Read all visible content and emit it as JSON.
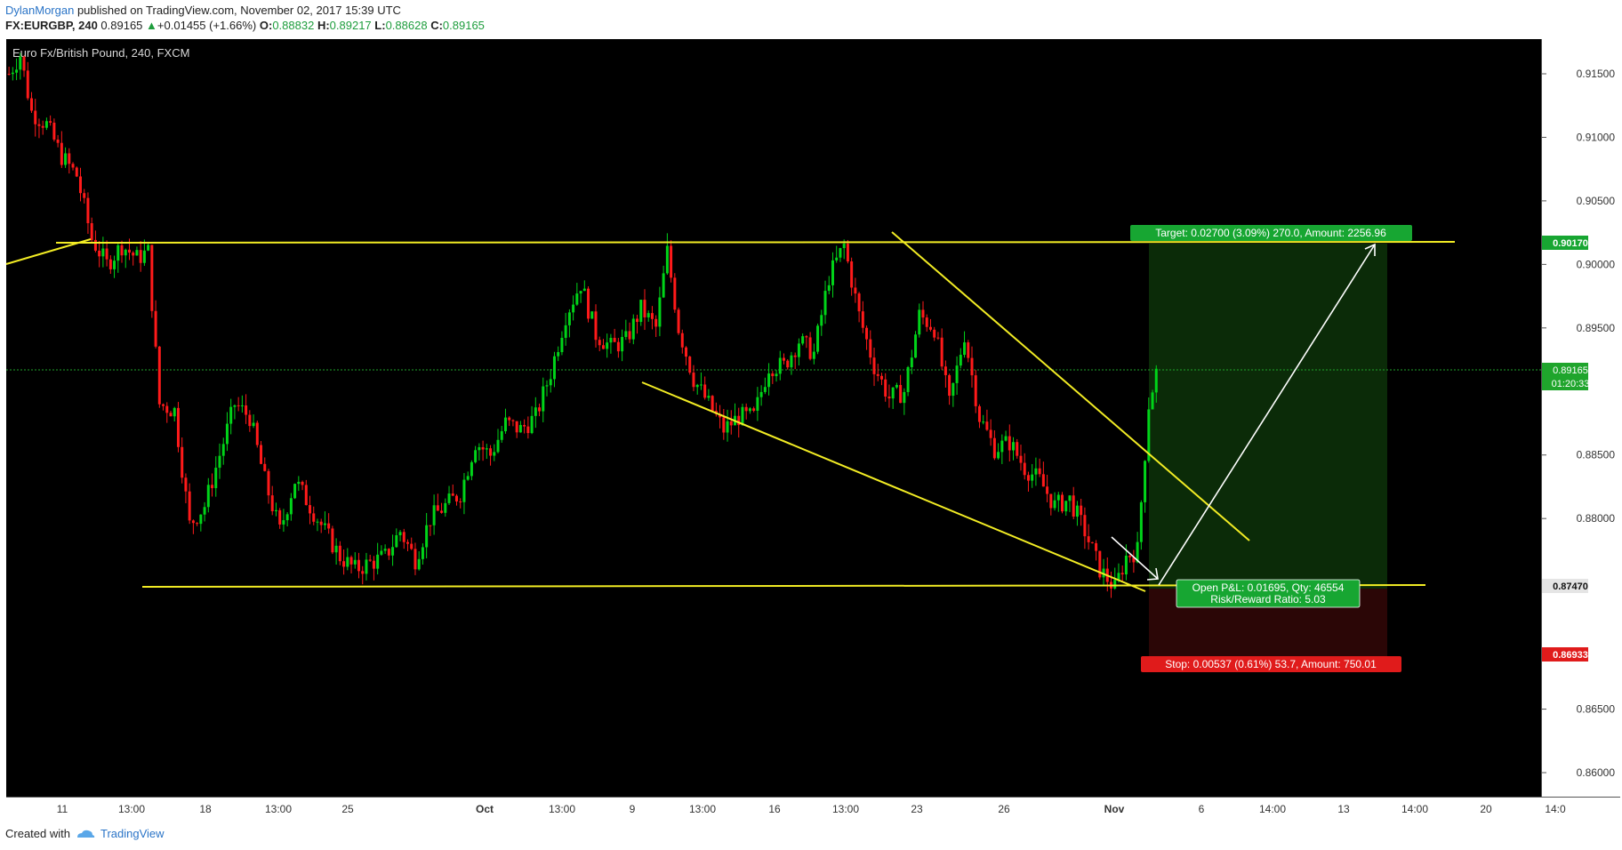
{
  "header": {
    "author": "DylanMorgan",
    "published_text": "published on TradingView.com, November 02, 2017 15:39 UTC",
    "symbol": "FX:EURGBP, 240",
    "last": "0.89165",
    "change": "+0.01455 (+1.66%)",
    "o_label": "O:",
    "o_value": "0.88832",
    "h_label": "H:",
    "h_value": "0.89217",
    "l_label": "L:",
    "l_value": "0.88628",
    "c_label": "C:",
    "c_value": "0.89165"
  },
  "footer": {
    "created_with": "Created with",
    "brand": "TradingView"
  },
  "colors": {
    "up": "#00d419",
    "down": "#ff1a1a",
    "trendline": "#f2ec24",
    "target_zone": "#0b2b08",
    "stop_zone": "#2b0606",
    "price_line": "#1fa52c",
    "stop_label": "#e01b1b",
    "target_label": "#17a632"
  },
  "chart_data": {
    "type": "candlestick",
    "title": "Euro Fx/British Pound, 240, FXCM",
    "ylim": [
      0.8575,
      0.918
    ],
    "y_ticks": [
      "0.91500",
      "0.91000",
      "0.90500",
      "0.90000",
      "0.89500",
      "0.88500",
      "0.88000",
      "0.86500",
      "0.86000"
    ],
    "x_ticks": [
      "11",
      "13:00",
      "18",
      "13:00",
      "25",
      "Oct",
      "13:00",
      "9",
      "13:00",
      "16",
      "13:00",
      "23",
      "26",
      "Nov",
      "6",
      "14:00",
      "13",
      "14:00",
      "20",
      "14:0"
    ],
    "price_labels": {
      "target": "0.90170",
      "current": "0.89165",
      "countdown": "01:20:33",
      "entry": "0.87470",
      "stop": "0.86933"
    },
    "position": {
      "target_text": "Target: 0.02700 (3.09%) 270.0, Amount: 2256.96",
      "stop_text": "Stop: 0.00537 (0.61%) 53.7, Amount: 750.01",
      "pnl_text": "Open P&L: 0.01695, Qty: 46554",
      "rr_text": "Risk/Reward Ratio: 5.03"
    },
    "anchors": [
      [
        0,
        0.915
      ],
      [
        3,
        0.9165
      ],
      [
        6,
        0.912
      ],
      [
        10,
        0.911
      ],
      [
        14,
        0.9085
      ],
      [
        18,
        0.907
      ],
      [
        22,
        0.902
      ],
      [
        26,
        0.9
      ],
      [
        30,
        0.9015
      ],
      [
        34,
        0.9005
      ],
      [
        37,
        0.901
      ],
      [
        40,
        0.889
      ],
      [
        44,
        0.8885
      ],
      [
        48,
        0.8795
      ],
      [
        52,
        0.881
      ],
      [
        56,
        0.885
      ],
      [
        60,
        0.889
      ],
      [
        64,
        0.888
      ],
      [
        68,
        0.883
      ],
      [
        72,
        0.879
      ],
      [
        76,
        0.883
      ],
      [
        80,
        0.881
      ],
      [
        84,
        0.879
      ],
      [
        88,
        0.877
      ],
      [
        92,
        0.876
      ],
      [
        96,
        0.8765
      ],
      [
        100,
        0.877
      ],
      [
        104,
        0.879
      ],
      [
        108,
        0.8768
      ],
      [
        112,
        0.88
      ],
      [
        116,
        0.881
      ],
      [
        120,
        0.882
      ],
      [
        124,
        0.886
      ],
      [
        128,
        0.885
      ],
      [
        132,
        0.8875
      ],
      [
        136,
        0.887
      ],
      [
        140,
        0.888
      ],
      [
        144,
        0.8915
      ],
      [
        148,
        0.896
      ],
      [
        152,
        0.8985
      ],
      [
        156,
        0.8945
      ],
      [
        160,
        0.8935
      ],
      [
        164,
        0.894
      ],
      [
        168,
        0.8965
      ],
      [
        172,
        0.895
      ],
      [
        175,
        0.901
      ],
      [
        178,
        0.895
      ],
      [
        182,
        0.891
      ],
      [
        186,
        0.889
      ],
      [
        190,
        0.887
      ],
      [
        194,
        0.888
      ],
      [
        198,
        0.888
      ],
      [
        202,
        0.892
      ],
      [
        206,
        0.892
      ],
      [
        210,
        0.894
      ],
      [
        214,
        0.893
      ],
      [
        218,
        0.899
      ],
      [
        222,
        0.9015
      ],
      [
        226,
        0.896
      ],
      [
        230,
        0.892
      ],
      [
        234,
        0.8895
      ],
      [
        238,
        0.89
      ],
      [
        242,
        0.896
      ],
      [
        246,
        0.895
      ],
      [
        250,
        0.889
      ],
      [
        254,
        0.8945
      ],
      [
        258,
        0.888
      ],
      [
        262,
        0.8855
      ],
      [
        266,
        0.886
      ],
      [
        270,
        0.884
      ],
      [
        274,
        0.883
      ],
      [
        278,
        0.881
      ],
      [
        282,
        0.8815
      ],
      [
        286,
        0.879
      ],
      [
        290,
        0.876
      ],
      [
        294,
        0.8745
      ],
      [
        297,
        0.877
      ],
      [
        300,
        0.8775
      ],
      [
        303,
        0.889
      ],
      [
        305,
        0.8915
      ]
    ],
    "visible_bars": 306
  }
}
